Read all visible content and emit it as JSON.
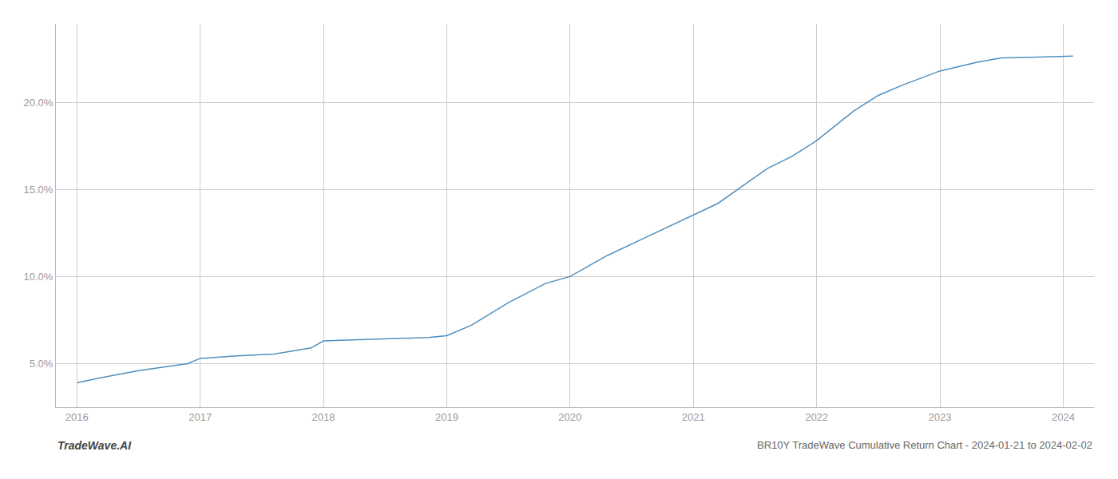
{
  "chart_data": {
    "type": "line",
    "title": "BR10Y TradeWave Cumulative Return Chart - 2024-01-21 to 2024-02-02",
    "annotations": [
      "TradeWave.AI"
    ],
    "x": [
      2016.0,
      2016.2,
      2016.5,
      2016.9,
      2017.0,
      2017.3,
      2017.6,
      2017.9,
      2018.0,
      2018.2,
      2018.5,
      2018.7,
      2018.85,
      2019.0,
      2019.2,
      2019.5,
      2019.8,
      2020.0,
      2020.3,
      2020.6,
      2020.9,
      2021.0,
      2021.2,
      2021.4,
      2021.6,
      2021.8,
      2022.0,
      2022.3,
      2022.5,
      2022.7,
      2023.0,
      2023.3,
      2023.5,
      2023.8,
      2024.0,
      2024.08
    ],
    "values": [
      3.9,
      4.2,
      4.6,
      5.0,
      5.3,
      5.45,
      5.55,
      5.9,
      6.3,
      6.35,
      6.4,
      6.45,
      6.5,
      6.6,
      7.2,
      8.5,
      9.6,
      10.0,
      11.2,
      12.2,
      13.2,
      13.5,
      14.2,
      15.2,
      16.2,
      16.9,
      17.8,
      19.5,
      20.4,
      21.0,
      21.8,
      22.3,
      22.55,
      22.6,
      22.65,
      22.65
    ],
    "color": "#4f8fbf",
    "xlim": [
      2015.83,
      2024.25
    ],
    "ylim": [
      2.5,
      24.5
    ],
    "xticks": [
      2016,
      2017,
      2018,
      2019,
      2020,
      2021,
      2022,
      2023,
      2024
    ],
    "yticks": [
      {
        "value": 5.0,
        "label": "5.0%"
      },
      {
        "value": 10.0,
        "label": "10.0%"
      },
      {
        "value": 15.0,
        "label": "15.0%"
      },
      {
        "value": 20.0,
        "label": "20.0%"
      }
    ],
    "grid": true
  }
}
